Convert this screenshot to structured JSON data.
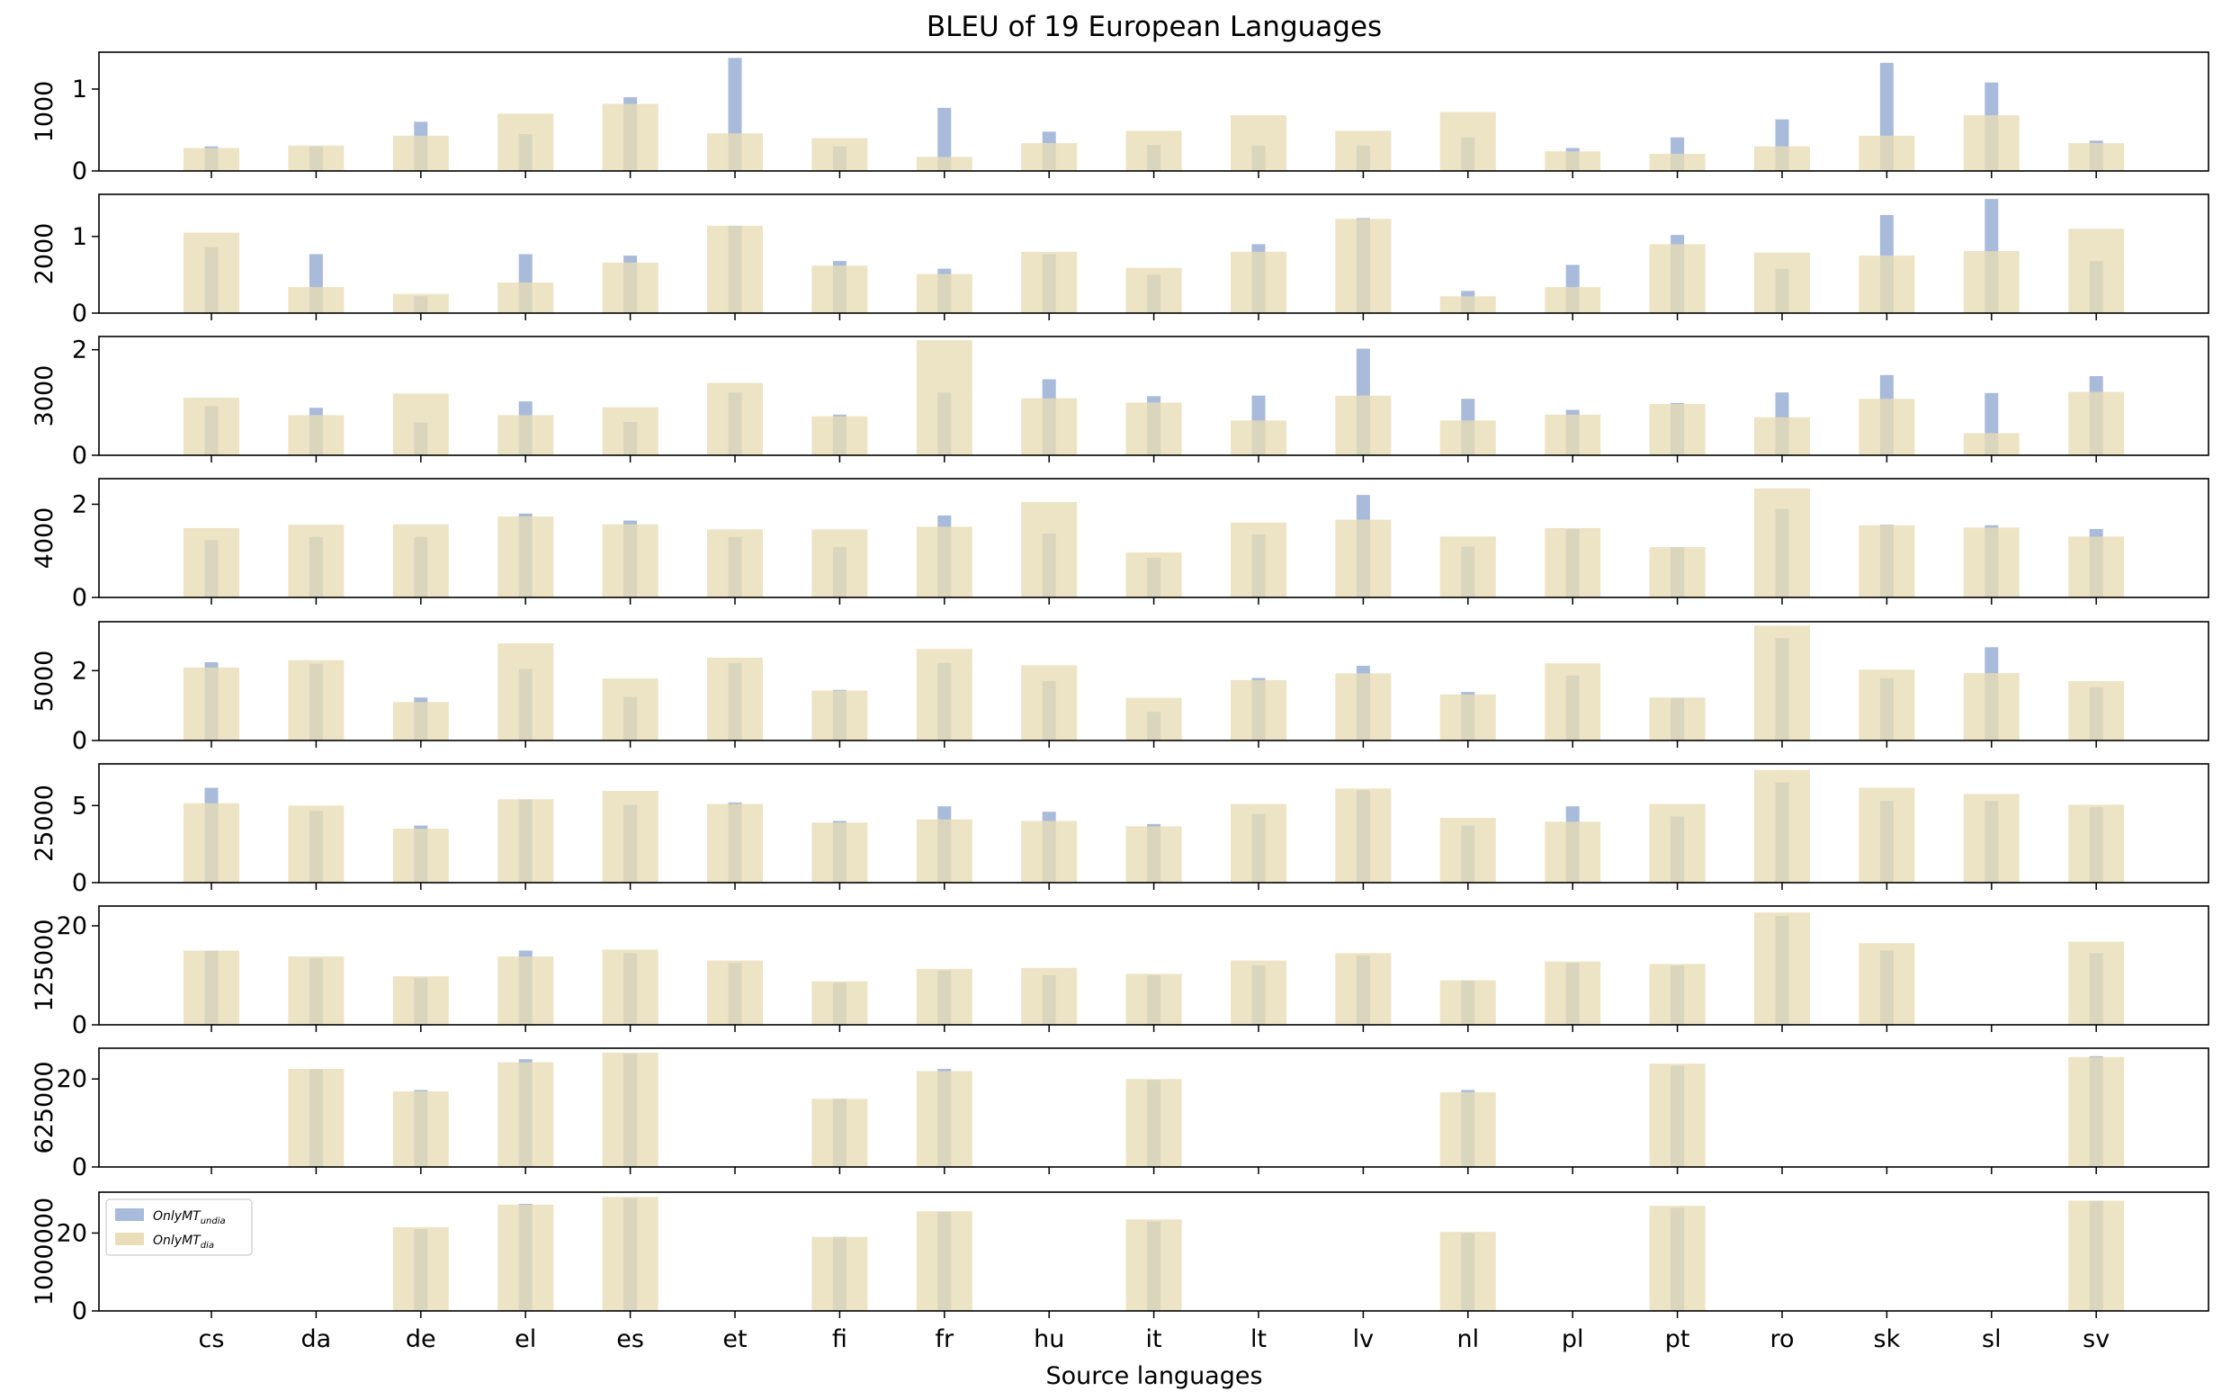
{
  "chart_data": {
    "type": "bar",
    "title": "BLEU of 19 European Languages",
    "xlabel": "Source languages",
    "categories": [
      "cs",
      "da",
      "de",
      "el",
      "es",
      "et",
      "fi",
      "fr",
      "hu",
      "it",
      "lt",
      "lv",
      "nl",
      "pl",
      "pt",
      "ro",
      "sk",
      "sl",
      "sv"
    ],
    "legend": {
      "placement": "top-left",
      "entries": [
        {
          "base": "OnlyMT",
          "sub": "undia",
          "color": "#a4b7d8"
        },
        {
          "base": "OnlyMT",
          "sub": "dia",
          "color": "#e8dcb5"
        }
      ]
    },
    "colors": {
      "undia": "#a4b7d8",
      "dia": "#e8dcb5"
    },
    "panels": [
      {
        "ylabel": "1000",
        "ylim": [
          0,
          1.45
        ],
        "yticks": [
          0,
          1
        ],
        "series": [
          {
            "name": "undia",
            "values": [
              0.3,
              0.3,
              0.6,
              0.45,
              0.9,
              1.38,
              0.3,
              0.77,
              0.48,
              0.32,
              0.31,
              0.31,
              0.41,
              0.28,
              0.41,
              0.63,
              1.32,
              1.08,
              0.37
            ]
          },
          {
            "name": "dia",
            "values": [
              0.28,
              0.31,
              0.43,
              0.7,
              0.82,
              0.46,
              0.4,
              0.17,
              0.34,
              0.49,
              0.68,
              0.49,
              0.72,
              0.24,
              0.21,
              0.3,
              0.43,
              0.68,
              0.34
            ]
          }
        ]
      },
      {
        "ylabel": "2000",
        "ylim": [
          0,
          1.55
        ],
        "yticks": [
          0,
          1
        ],
        "series": [
          {
            "name": "undia",
            "values": [
              0.86,
              0.77,
              0.22,
              0.77,
              0.75,
              1.14,
              0.68,
              0.58,
              0.77,
              0.5,
              0.9,
              1.24,
              0.29,
              0.63,
              1.02,
              0.58,
              1.28,
              1.49,
              0.68
            ]
          },
          {
            "name": "dia",
            "values": [
              1.05,
              0.34,
              0.25,
              0.4,
              0.66,
              1.14,
              0.62,
              0.51,
              0.8,
              0.59,
              0.8,
              1.23,
              0.22,
              0.34,
              0.9,
              0.79,
              0.75,
              0.81,
              1.1
            ]
          }
        ]
      },
      {
        "ylabel": "3000",
        "ylim": [
          0,
          2.25
        ],
        "yticks": [
          0,
          2
        ],
        "series": [
          {
            "name": "undia",
            "values": [
              0.93,
              0.9,
              0.62,
              1.02,
              0.63,
              1.19,
              0.77,
              1.19,
              1.44,
              1.12,
              1.13,
              2.02,
              1.07,
              0.86,
              0.99,
              1.19,
              1.52,
              1.18,
              1.5
            ]
          },
          {
            "name": "dia",
            "values": [
              1.09,
              0.76,
              1.17,
              0.76,
              0.91,
              1.37,
              0.74,
              2.18,
              1.08,
              1.0,
              0.66,
              1.13,
              0.66,
              0.77,
              0.97,
              0.72,
              1.07,
              0.42,
              1.2
            ]
          }
        ]
      },
      {
        "ylabel": "4000",
        "ylim": [
          0,
          2.55
        ],
        "yticks": [
          0,
          2
        ],
        "series": [
          {
            "name": "undia",
            "values": [
              1.23,
              1.3,
              1.3,
              1.8,
              1.65,
              1.3,
              1.08,
              1.76,
              1.37,
              0.85,
              1.35,
              2.2,
              1.09,
              1.47,
              1.08,
              1.9,
              1.56,
              1.55,
              1.47
            ]
          },
          {
            "name": "dia",
            "values": [
              1.49,
              1.56,
              1.57,
              1.74,
              1.57,
              1.46,
              1.46,
              1.52,
              2.05,
              0.97,
              1.61,
              1.67,
              1.31,
              1.49,
              1.08,
              2.34,
              1.55,
              1.5,
              1.31
            ]
          }
        ]
      },
      {
        "ylabel": "5000",
        "ylim": [
          0,
          3.4
        ],
        "yticks": [
          0,
          2
        ],
        "series": [
          {
            "name": "undia",
            "values": [
              2.24,
              2.2,
              1.23,
              2.05,
              1.25,
              2.21,
              1.45,
              2.22,
              1.7,
              0.82,
              1.79,
              2.14,
              1.39,
              1.86,
              1.22,
              2.93,
              1.78,
              2.67,
              1.52
            ]
          },
          {
            "name": "dia",
            "values": [
              2.09,
              2.3,
              1.1,
              2.78,
              1.78,
              2.37,
              1.43,
              2.62,
              2.15,
              1.22,
              1.73,
              1.92,
              1.32,
              2.21,
              1.23,
              3.29,
              2.03,
              1.93,
              1.7
            ]
          }
        ]
      },
      {
        "ylabel": "25000",
        "ylim": [
          0,
          7.7
        ],
        "yticks": [
          0,
          5
        ],
        "series": [
          {
            "name": "undia",
            "values": [
              6.15,
              4.65,
              3.7,
              5.4,
              5.05,
              5.2,
              4.0,
              4.95,
              4.6,
              3.8,
              4.45,
              6.0,
              3.7,
              4.95,
              4.3,
              6.5,
              5.3,
              5.3,
              4.9
            ]
          },
          {
            "name": "dia",
            "values": [
              5.15,
              5.0,
              3.5,
              5.4,
              5.95,
              5.1,
              3.9,
              4.1,
              4.0,
              3.65,
              5.1,
              6.1,
              4.2,
              3.95,
              5.1,
              7.3,
              6.15,
              5.75,
              5.05
            ]
          }
        ]
      },
      {
        "ylabel": "125000",
        "ylim": [
          0,
          24
        ],
        "yticks": [
          0,
          20
        ],
        "series": [
          {
            "name": "undia",
            "values": [
              15.0,
              13.5,
              9.5,
              15.0,
              14.5,
              12.5,
              8.5,
              11.0,
              10.0,
              10.0,
              12.0,
              14.0,
              9.0,
              12.5,
              12.0,
              22.0,
              15.0,
              null,
              14.5
            ]
          },
          {
            "name": "dia",
            "values": [
              15.0,
              13.8,
              9.8,
              13.8,
              15.2,
              13.0,
              8.8,
              11.3,
              11.5,
              10.3,
              13.0,
              14.5,
              9.0,
              12.8,
              12.3,
              22.7,
              16.5,
              null,
              16.8
            ]
          }
        ]
      },
      {
        "ylabel": "625000",
        "ylim": [
          0,
          27
        ],
        "yticks": [
          0,
          20
        ],
        "series": [
          {
            "name": "undia",
            "values": [
              null,
              22.2,
              17.5,
              24.5,
              25.8,
              null,
              15.5,
              22.3,
              null,
              19.8,
              null,
              null,
              17.5,
              null,
              23.0,
              null,
              null,
              null,
              25.2
            ]
          },
          {
            "name": "dia",
            "values": [
              null,
              22.3,
              17.2,
              23.8,
              26.0,
              null,
              15.5,
              21.8,
              null,
              20.0,
              null,
              null,
              17.0,
              null,
              23.5,
              null,
              null,
              null,
              25.0
            ]
          }
        ]
      },
      {
        "ylabel": "1000000",
        "ylim": [
          0,
          30.5
        ],
        "yticks": [
          0,
          20
        ],
        "series": [
          {
            "name": "undia",
            "values": [
              null,
              null,
              21.0,
              27.5,
              29.0,
              null,
              19.0,
              25.5,
              null,
              23.0,
              null,
              null,
              20.0,
              null,
              26.5,
              null,
              null,
              null,
              28.3
            ]
          },
          {
            "name": "dia",
            "values": [
              null,
              null,
              21.5,
              27.3,
              29.3,
              null,
              19.0,
              25.6,
              null,
              23.5,
              null,
              null,
              20.3,
              null,
              27.0,
              null,
              null,
              null,
              28.3
            ]
          }
        ]
      }
    ]
  }
}
